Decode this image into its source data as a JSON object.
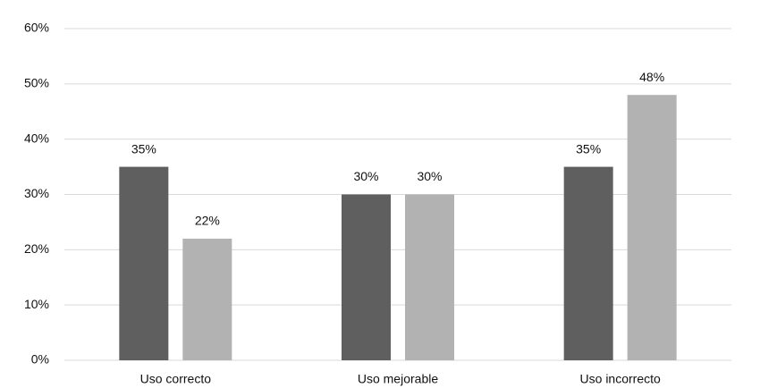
{
  "chart_data": {
    "type": "bar",
    "categories": [
      "Uso correcto",
      "Uso mejorable",
      "Uso incorrecto"
    ],
    "series": [
      {
        "color": "#5f5f5f",
        "values": [
          35,
          30,
          35
        ],
        "value_labels": [
          "35%",
          "30%",
          "35%"
        ]
      },
      {
        "color": "#b2b2b2",
        "values": [
          22,
          30,
          48
        ],
        "value_labels": [
          "22%",
          "30%",
          "48%"
        ]
      }
    ],
    "ylim": [
      0,
      60
    ],
    "yticks": [
      {
        "value": 0,
        "label": "0%"
      },
      {
        "value": 10,
        "label": "10%"
      },
      {
        "value": 20,
        "label": "20%"
      },
      {
        "value": 30,
        "label": "30%"
      },
      {
        "value": 40,
        "label": "40%"
      },
      {
        "value": 50,
        "label": "50%"
      },
      {
        "value": 60,
        "label": "60%"
      }
    ],
    "grid": true
  }
}
